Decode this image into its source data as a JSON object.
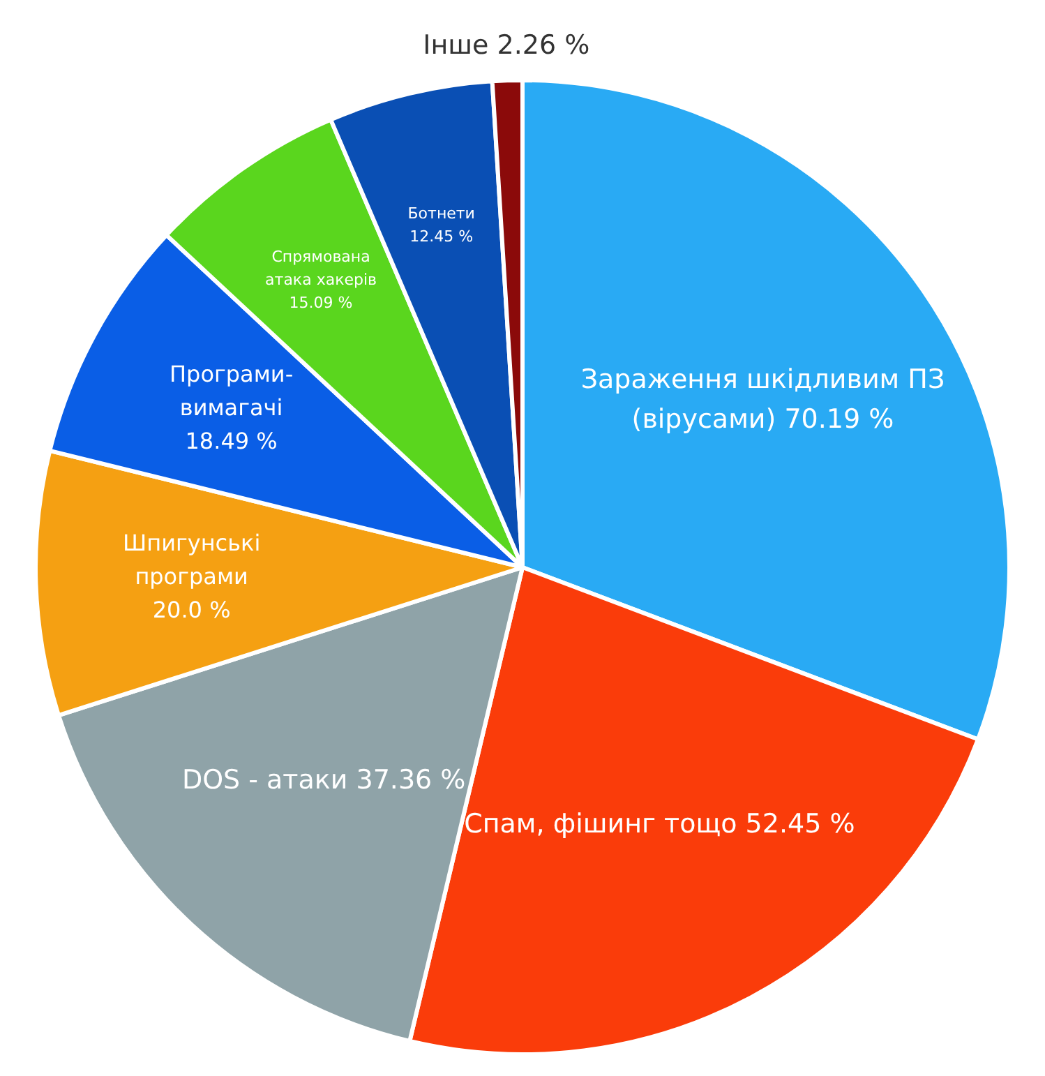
{
  "chart_data": {
    "type": "pie",
    "categories": [
      "Зараження шкідливим ПЗ (вірусами)",
      "Спам, фішинг тощо",
      "DOS - атаки",
      "Шпигунські програми",
      "Програми-вимагачі",
      "Спрямована атака хакерів",
      "Ботнети",
      "Інше"
    ],
    "values": [
      70.19,
      52.45,
      37.36,
      20.0,
      18.49,
      15.09,
      12.45,
      2.26
    ],
    "value_labels": [
      "70.19 %",
      "52.45 %",
      "37.36 %",
      "20.0 %",
      "18.49 %",
      "15.09 %",
      "12.45 %",
      "2.26 %"
    ],
    "colors": [
      "#29aaf4",
      "#fa3c0a",
      "#8fa3a8",
      "#f5a012",
      "#0a5ee6",
      "#5ad61e",
      "#0a4fb4",
      "#8b0a0a"
    ],
    "legend": false
  }
}
